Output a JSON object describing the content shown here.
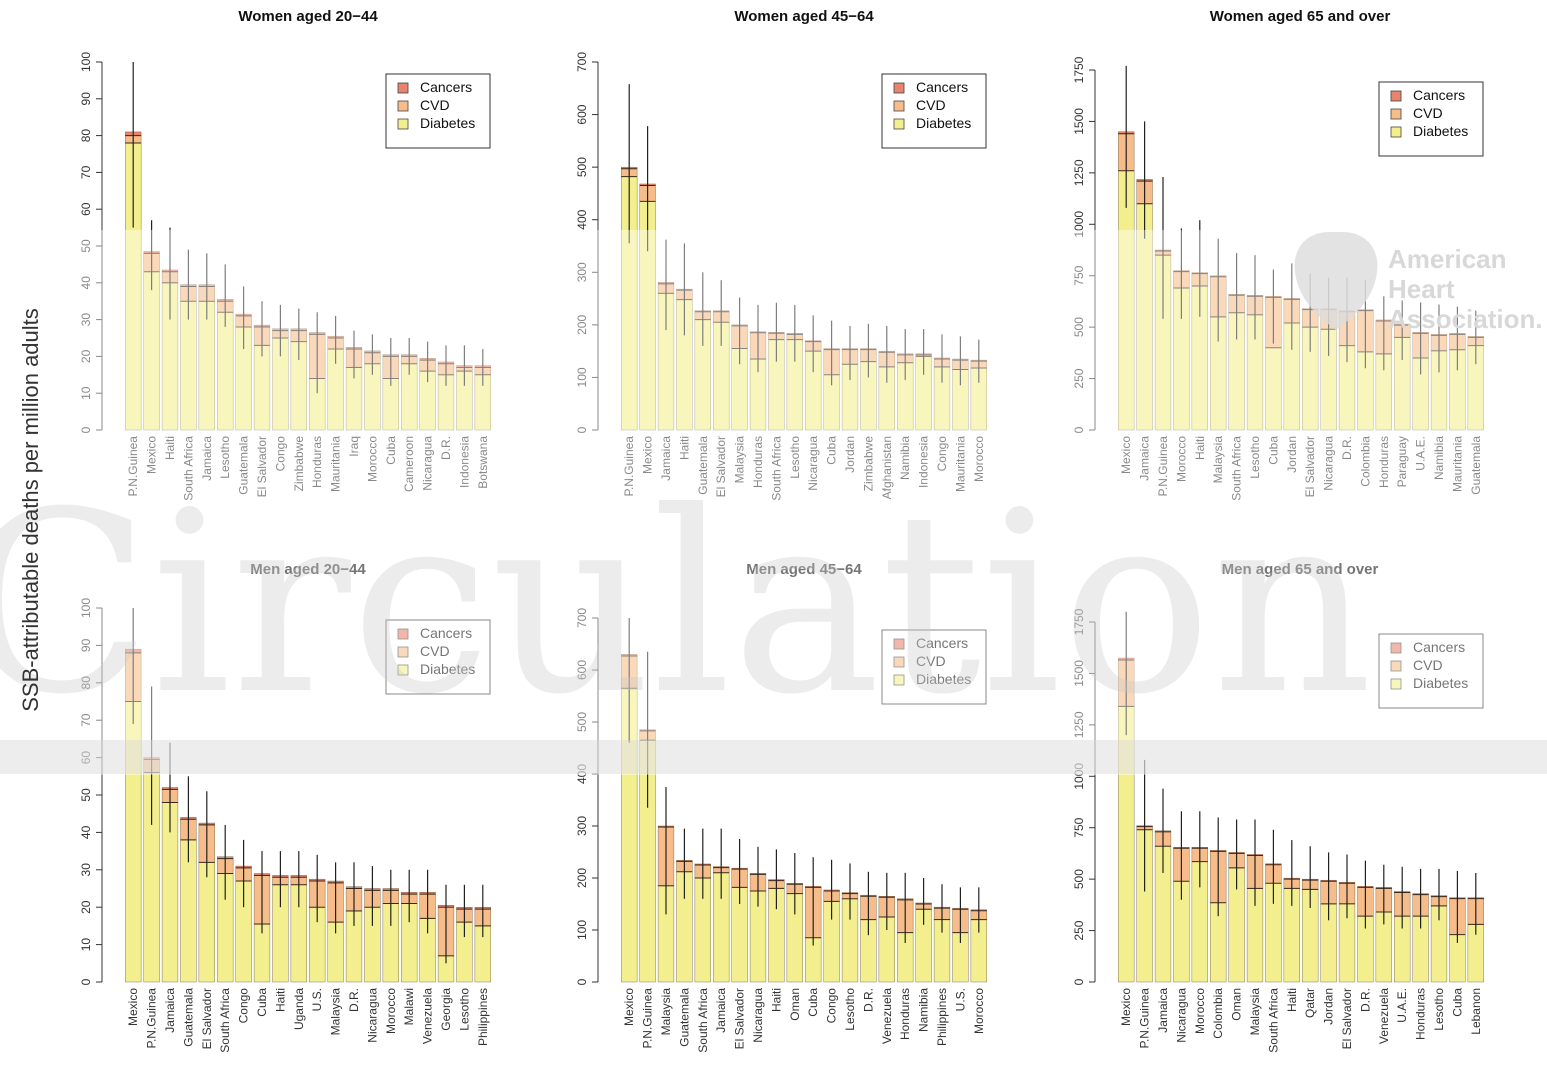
{
  "ylabel": "SSB-attributable deaths per million adults",
  "watermark": "Circulation",
  "aha_logo_lines": [
    "American",
    "Heart",
    "Association."
  ],
  "colors": {
    "Cancers": "#e8836e",
    "CVD": "#f6bd8a",
    "Diabetes": "#f4ef8e"
  },
  "legend_entries": [
    "Cancers",
    "CVD",
    "Diabetes"
  ],
  "chart_data": [
    {
      "type": "bar",
      "stacked": true,
      "title": "Women aged 20−44",
      "ylim": [
        0,
        100
      ],
      "yticks": [
        0,
        10,
        20,
        30,
        40,
        50,
        60,
        70,
        80,
        90,
        100
      ],
      "legend": "top-right",
      "categories": [
        "P.N.Guinea",
        "Mexico",
        "Haiti",
        "South Africa",
        "Jamaica",
        "Lesotho",
        "Guatemala",
        "El Salvador",
        "Congo",
        "Zimbabwe",
        "Honduras",
        "Mauritania",
        "Iraq",
        "Morocco",
        "Cuba",
        "Cameroon",
        "Nicaragua",
        "D.R.",
        "Indonesia",
        "Botswana"
      ],
      "series": [
        {
          "name": "Diabetes",
          "values": [
            78,
            43,
            40,
            35,
            35,
            32,
            28,
            23,
            25,
            24,
            14,
            22,
            17,
            18,
            14,
            18,
            16,
            15,
            16,
            15
          ]
        },
        {
          "name": "CVD",
          "values": [
            2,
            5,
            3,
            4,
            4,
            3,
            3,
            5,
            2,
            3,
            12,
            3,
            5,
            3,
            6,
            2,
            3,
            3,
            1,
            2
          ]
        },
        {
          "name": "Cancers",
          "values": [
            1,
            0.5,
            0.5,
            0.5,
            0.5,
            0.5,
            0.5,
            0.5,
            0.5,
            0.5,
            0.5,
            0.5,
            0.5,
            0.5,
            0.5,
            0.5,
            0.5,
            0.5,
            0.5,
            0.5
          ]
        }
      ],
      "error_upper": [
        100,
        57,
        55,
        49,
        48,
        45,
        39,
        35,
        34,
        33,
        32,
        31,
        27,
        26,
        25,
        25,
        24,
        23,
        23,
        22
      ],
      "error_lower": [
        55,
        38,
        30,
        30,
        30,
        28,
        22,
        20,
        20,
        19,
        10,
        18,
        14,
        15,
        12,
        15,
        13,
        12,
        12,
        12
      ]
    },
    {
      "type": "bar",
      "stacked": true,
      "title": "Women aged 45−64",
      "ylim": [
        0,
        700
      ],
      "yticks": [
        0,
        100,
        200,
        300,
        400,
        500,
        600,
        700
      ],
      "legend": "top-right",
      "categories": [
        "P.N.Guinea",
        "Mexico",
        "Jamaica",
        "Haiti",
        "Guatemala",
        "El Salvador",
        "Malaysia",
        "Honduras",
        "South Africa",
        "Lesotho",
        "Nicaragua",
        "Cuba",
        "Jordan",
        "Zimbabwe",
        "Afghanistan",
        "Namibia",
        "Indonesia",
        "Congo",
        "Mauritania",
        "Morocco"
      ],
      "series": [
        {
          "name": "Diabetes",
          "values": [
            482,
            435,
            260,
            248,
            210,
            205,
            155,
            135,
            172,
            172,
            150,
            105,
            125,
            130,
            120,
            128,
            140,
            120,
            115,
            118
          ]
        },
        {
          "name": "CVD",
          "values": [
            15,
            30,
            18,
            18,
            15,
            20,
            43,
            50,
            12,
            10,
            18,
            48,
            28,
            23,
            28,
            15,
            3,
            15,
            18,
            13
          ]
        },
        {
          "name": "Cancers",
          "values": [
            3,
            3,
            3,
            2,
            2,
            2,
            2,
            2,
            2,
            2,
            2,
            2,
            2,
            2,
            2,
            2,
            2,
            2,
            2,
            2
          ]
        }
      ],
      "error_upper": [
        658,
        578,
        362,
        355,
        300,
        285,
        252,
        238,
        242,
        238,
        218,
        208,
        198,
        202,
        198,
        192,
        192,
        182,
        178,
        172
      ],
      "error_lower": [
        355,
        340,
        190,
        180,
        160,
        160,
        125,
        110,
        130,
        130,
        110,
        85,
        95,
        100,
        90,
        95,
        105,
        90,
        85,
        90
      ]
    },
    {
      "type": "bar",
      "stacked": true,
      "title": "Women aged 65 and over",
      "ylim": [
        0,
        1750
      ],
      "yticks": [
        0,
        250,
        500,
        750,
        1000,
        1250,
        1500,
        1750
      ],
      "legend": "top-right",
      "categories": [
        "Mexico",
        "Jamaica",
        "P.N.Guinea",
        "Morocco",
        "Haiti",
        "Malaysia",
        "South Africa",
        "Lesotho",
        "Cuba",
        "Jordan",
        "El Salvador",
        "Nicaragua",
        "D.R.",
        "Colombia",
        "Honduras",
        "Paraguay",
        "U.A.E.",
        "Namibia",
        "Mauritania",
        "Guatemala"
      ],
      "series": [
        {
          "name": "Diabetes",
          "values": [
            1260,
            1100,
            850,
            690,
            700,
            550,
            570,
            560,
            400,
            520,
            500,
            490,
            410,
            380,
            370,
            450,
            350,
            385,
            390,
            410
          ]
        },
        {
          "name": "CVD",
          "values": [
            180,
            110,
            20,
            80,
            60,
            195,
            85,
            90,
            245,
            115,
            85,
            95,
            165,
            200,
            160,
            60,
            120,
            75,
            75,
            40
          ]
        },
        {
          "name": "Cancers",
          "values": [
            10,
            8,
            5,
            5,
            5,
            5,
            5,
            5,
            5,
            5,
            5,
            5,
            5,
            5,
            5,
            5,
            5,
            5,
            5,
            5
          ]
        }
      ],
      "error_upper": [
        1770,
        1500,
        1230,
        980,
        1020,
        930,
        860,
        850,
        780,
        810,
        760,
        740,
        740,
        730,
        650,
        630,
        620,
        610,
        600,
        580
      ],
      "error_lower": [
        1080,
        930,
        540,
        540,
        550,
        430,
        440,
        440,
        420,
        390,
        380,
        360,
        330,
        300,
        290,
        340,
        270,
        280,
        290,
        320
      ]
    },
    {
      "type": "bar",
      "stacked": true,
      "title": "Men aged 20−44",
      "ylim": [
        0,
        100
      ],
      "yticks": [
        0,
        10,
        20,
        30,
        40,
        50,
        60,
        70,
        80,
        90,
        100
      ],
      "legend": "top-right",
      "categories": [
        "Mexico",
        "P.N.Guinea",
        "Jamaica",
        "Guatemala",
        "El Salvador",
        "South Africa",
        "Congo",
        "Cuba",
        "Haiti",
        "Uganda",
        "U.S.",
        "Malaysia",
        "D.R.",
        "Nicaragua",
        "Morocco",
        "Malawi",
        "Venezuela",
        "Georgia",
        "Lesotho",
        "Philippines"
      ],
      "series": [
        {
          "name": "Diabetes",
          "values": [
            75,
            56,
            48,
            38,
            32,
            29,
            27,
            15.5,
            26,
            26,
            20,
            16,
            19,
            20,
            21,
            21,
            17,
            7,
            16,
            15
          ]
        },
        {
          "name": "CVD",
          "values": [
            13,
            3.5,
            3.5,
            5.5,
            10,
            4,
            3.5,
            13,
            2,
            2,
            7,
            10.5,
            6,
            4.5,
            3.5,
            2.5,
            6.5,
            13,
            3.5,
            4.5
          ]
        },
        {
          "name": "Cancers",
          "values": [
            1,
            0.5,
            0.5,
            0.5,
            0.5,
            0.5,
            0.5,
            0.5,
            0.5,
            0.5,
            0.5,
            0.5,
            0.5,
            0.5,
            0.5,
            0.5,
            0.5,
            0.5,
            0.5,
            0.5
          ]
        }
      ],
      "error_upper": [
        100,
        79,
        64,
        55,
        51,
        42,
        38,
        35,
        35,
        35,
        34,
        32,
        32,
        31,
        30,
        30,
        30,
        26,
        26,
        26
      ],
      "error_lower": [
        69,
        42,
        40,
        32,
        28,
        22,
        20,
        13,
        20,
        20,
        16,
        13,
        15,
        15,
        15,
        16,
        13,
        5,
        12,
        12
      ]
    },
    {
      "type": "bar",
      "stacked": true,
      "title": "Men aged 45−64",
      "ylim": [
        0,
        700
      ],
      "yticks": [
        0,
        100,
        200,
        300,
        400,
        500,
        600,
        700
      ],
      "legend": "top-right",
      "categories": [
        "Mexico",
        "P.N.Guinea",
        "Malaysia",
        "Guatemala",
        "South Africa",
        "Jamaica",
        "El Salvador",
        "Nicaragua",
        "Haiti",
        "Oman",
        "Cuba",
        "Congo",
        "Lesotho",
        "D.R.",
        "Venezuela",
        "Honduras",
        "Namibia",
        "Philippines",
        "U.S.",
        "Morocco"
      ],
      "series": [
        {
          "name": "Diabetes",
          "values": [
            565,
            465,
            185,
            212,
            200,
            210,
            182,
            175,
            180,
            170,
            85,
            155,
            160,
            120,
            125,
            95,
            140,
            120,
            95,
            120
          ]
        },
        {
          "name": "CVD",
          "values": [
            62,
            18,
            113,
            20,
            25,
            10,
            35,
            32,
            15,
            18,
            97,
            20,
            10,
            45,
            38,
            63,
            10,
            22,
            45,
            17
          ]
        },
        {
          "name": "Cancers",
          "values": [
            3,
            2,
            2,
            2,
            2,
            2,
            2,
            2,
            2,
            2,
            2,
            2,
            2,
            2,
            2,
            2,
            2,
            2,
            2,
            2
          ]
        }
      ],
      "error_upper": [
        700,
        635,
        375,
        295,
        295,
        295,
        275,
        260,
        255,
        248,
        240,
        235,
        228,
        212,
        210,
        210,
        200,
        188,
        182,
        182
      ],
      "error_lower": [
        460,
        335,
        130,
        160,
        160,
        160,
        150,
        145,
        140,
        130,
        70,
        120,
        120,
        90,
        100,
        75,
        110,
        95,
        75,
        95
      ]
    },
    {
      "type": "bar",
      "stacked": true,
      "title": "Men aged 65 and over",
      "ylim": [
        0,
        1750
      ],
      "yticks": [
        0,
        250,
        500,
        750,
        1000,
        1250,
        1500,
        1750
      ],
      "legend": "top-right",
      "categories": [
        "Mexico",
        "P.N.Guinea",
        "Jamaica",
        "Nicaragua",
        "Morocco",
        "Colombia",
        "Oman",
        "Malaysia",
        "South Africa",
        "Haiti",
        "Qatar",
        "Jordan",
        "El Salvador",
        "D.R.",
        "Venezuela",
        "U.A.E.",
        "Honduras",
        "Lesotho",
        "Cuba",
        "Lebanon"
      ],
      "series": [
        {
          "name": "Diabetes",
          "values": [
            1340,
            740,
            660,
            490,
            585,
            385,
            555,
            455,
            480,
            455,
            450,
            380,
            380,
            320,
            340,
            320,
            320,
            370,
            230,
            280
          ]
        },
        {
          "name": "CVD",
          "values": [
            225,
            15,
            70,
            160,
            65,
            250,
            70,
            160,
            90,
            45,
            45,
            110,
            100,
            140,
            115,
            115,
            105,
            45,
            175,
            125
          ]
        },
        {
          "name": "Cancers",
          "values": [
            10,
            5,
            5,
            5,
            5,
            5,
            5,
            5,
            5,
            5,
            5,
            5,
            5,
            5,
            5,
            5,
            5,
            5,
            5,
            5
          ]
        }
      ],
      "error_upper": [
        1800,
        1080,
        940,
        830,
        830,
        800,
        790,
        790,
        740,
        690,
        660,
        630,
        620,
        590,
        570,
        560,
        550,
        550,
        540,
        530
      ],
      "error_lower": [
        1200,
        440,
        530,
        400,
        460,
        320,
        450,
        370,
        380,
        370,
        360,
        300,
        310,
        260,
        280,
        260,
        260,
        300,
        190,
        230
      ]
    }
  ]
}
